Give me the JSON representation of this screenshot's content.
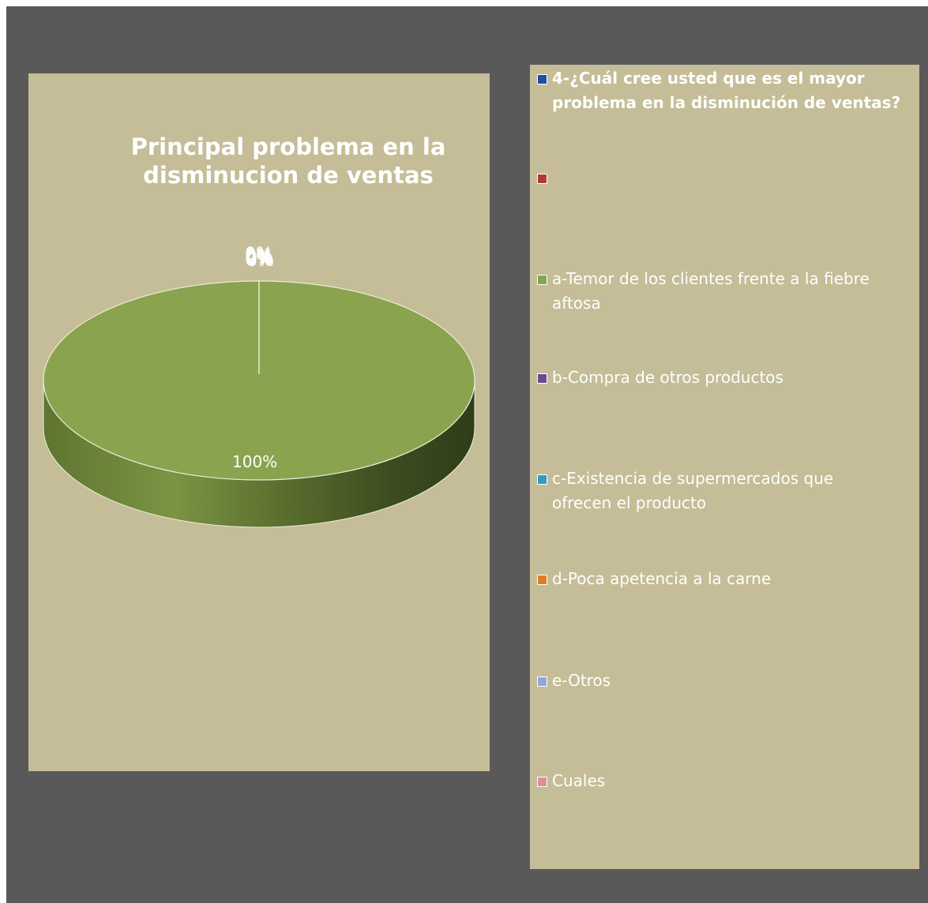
{
  "chart_data": {
    "type": "pie",
    "style": "3d",
    "title": "Principal problema en la disminucion de ventas",
    "title_lines": [
      "Principal problema en la",
      "disminucion de ventas"
    ],
    "legend_position": "right",
    "categories": [
      "4-¿Cuál cree usted que es el mayor problema en la disminución de ventas?",
      "",
      "a-Temor de los clientes frente a la fiebre aftosa",
      "b-Compra de otros productos",
      "c-Existencia de supermercados que ofrecen el producto",
      "d-Poca apetencia a la carne",
      "e-Otros",
      "Cuales"
    ],
    "values": [
      0,
      0,
      100,
      0,
      0,
      0,
      0,
      0
    ],
    "data_labels": [
      "0%",
      "0%",
      "100%",
      "0%",
      "0%",
      "0%",
      "0%",
      "0%"
    ],
    "colors": [
      "#1f4e9c",
      "#b03a3a",
      "#8aa34f",
      "#6b4a93",
      "#2f9cc2",
      "#e07b24",
      "#8ea8dc",
      "#d9909a"
    ]
  },
  "legend": [
    {
      "lines": [
        "4-¿Cuál cree usted que es el mayor",
        "problema en la disminución de ventas?"
      ],
      "bold": true
    },
    {
      "lines": [
        ""
      ],
      "bold": false
    },
    {
      "lines": [
        "a-Temor de los clientes frente a la fiebre",
        "aftosa"
      ],
      "bold": false
    },
    {
      "lines": [
        "b-Compra de otros productos"
      ],
      "bold": false
    },
    {
      "lines": [
        "c-Existencia de supermercados que",
        "ofrecen el producto"
      ],
      "bold": false
    },
    {
      "lines": [
        "d-Poca apetencia a la carne"
      ],
      "bold": false
    },
    {
      "lines": [
        "e-Otros"
      ],
      "bold": false
    },
    {
      "lines": [
        "Cuales"
      ],
      "bold": false
    }
  ],
  "colors": {
    "frame_bg": "#595959",
    "panel_bg": "#c4bd97",
    "text": "#ffffff",
    "pie_top": "#8aa34f"
  }
}
